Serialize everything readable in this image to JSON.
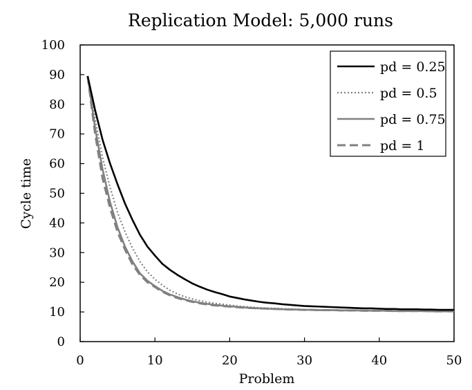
{
  "chart_data": {
    "type": "line",
    "title": "Replication Model: 5,000 runs",
    "xlabel": "Problem",
    "ylabel": "Cycle time",
    "xlim": [
      0,
      50
    ],
    "ylim": [
      0,
      100
    ],
    "xticks": [
      0,
      10,
      20,
      30,
      40,
      50
    ],
    "yticks": [
      0,
      10,
      20,
      30,
      40,
      50,
      60,
      70,
      80,
      90,
      100
    ],
    "grid": false,
    "legend_position": "top-right",
    "x": [
      1,
      2,
      3,
      4,
      5,
      6,
      7,
      8,
      9,
      10,
      11,
      12,
      13,
      14,
      15,
      16,
      17,
      18,
      19,
      20,
      21,
      22,
      23,
      24,
      25,
      26,
      27,
      28,
      29,
      30,
      31,
      32,
      33,
      34,
      35,
      36,
      37,
      38,
      39,
      40,
      41,
      42,
      43,
      44,
      45,
      46,
      47,
      48,
      49,
      50
    ],
    "series": [
      {
        "name": "pd = 0.25",
        "color": "#000000",
        "style": "solid",
        "values": [
          89.5,
          78,
          68,
          60,
          53,
          46.5,
          41,
          36,
          32,
          29,
          26.2,
          24.2,
          22.5,
          21,
          19.6,
          18.5,
          17.5,
          16.7,
          16,
          15.2,
          14.7,
          14.2,
          13.8,
          13.4,
          13.1,
          12.9,
          12.6,
          12.4,
          12.2,
          12.0,
          11.9,
          11.8,
          11.7,
          11.6,
          11.5,
          11.4,
          11.3,
          11.2,
          11.2,
          11.1,
          11.0,
          11.0,
          10.9,
          10.9,
          10.9,
          10.8,
          10.8,
          10.7,
          10.7,
          10.7
        ]
      },
      {
        "name": "pd = 0.5",
        "color": "#808080",
        "style": "dotted",
        "values": [
          89.5,
          75,
          62,
          52,
          43.5,
          37,
          31.5,
          27,
          23.5,
          21,
          19,
          17.3,
          16.1,
          15.1,
          14.4,
          13.8,
          13.3,
          12.9,
          12.6,
          12.3,
          12.0,
          11.8,
          11.6,
          11.4,
          11.3,
          11.2,
          11.1,
          11.0,
          10.9,
          10.8,
          10.8,
          10.7,
          10.7,
          10.7,
          10.6,
          10.6,
          10.6,
          10.5,
          10.5,
          10.5,
          10.5,
          10.4,
          10.4,
          10.4,
          10.4,
          10.4,
          10.3,
          10.3,
          10.3,
          10.3
        ]
      },
      {
        "name": "pd = 0.75",
        "color": "#808080",
        "style": "solid",
        "values": [
          89.5,
          72,
          58,
          47,
          38.5,
          32,
          27,
          23,
          20.5,
          18.7,
          17.1,
          15.9,
          15.0,
          14.2,
          13.6,
          13.1,
          12.7,
          12.4,
          12.1,
          11.9,
          11.7,
          11.5,
          11.3,
          11.2,
          11.1,
          11.0,
          10.9,
          10.8,
          10.8,
          10.7,
          10.7,
          10.6,
          10.6,
          10.6,
          10.5,
          10.5,
          10.5,
          10.4,
          10.4,
          10.4,
          10.4,
          10.3,
          10.3,
          10.3,
          10.3,
          10.3,
          10.2,
          10.2,
          10.2,
          10.2
        ]
      },
      {
        "name": "pd = 1",
        "color": "#808080",
        "style": "dashed",
        "values": [
          89.5,
          70,
          55,
          45,
          37,
          31,
          26,
          22.5,
          20,
          18.4,
          16.8,
          15.6,
          14.7,
          14.0,
          13.4,
          12.9,
          12.5,
          12.2,
          12.0,
          11.8,
          11.6,
          11.4,
          11.3,
          11.2,
          11.1,
          11.0,
          10.9,
          10.8,
          10.8,
          10.7,
          10.7,
          10.6,
          10.6,
          10.6,
          10.5,
          10.5,
          10.5,
          10.4,
          10.4,
          10.4,
          10.4,
          10.3,
          10.3,
          10.3,
          10.3,
          10.3,
          10.2,
          10.2,
          10.2,
          10.2
        ]
      }
    ]
  }
}
